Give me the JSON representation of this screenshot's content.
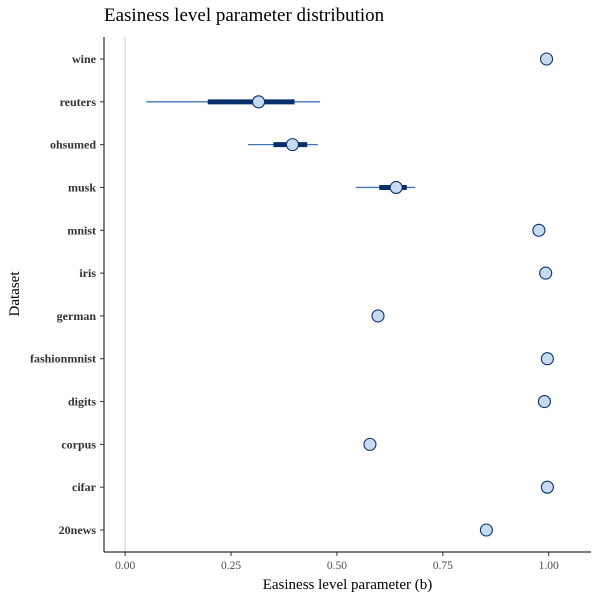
{
  "chart_data": {
    "type": "scatter",
    "title": "Easiness level parameter distribution",
    "xlabel": "Easiness level parameter (b)",
    "ylabel": "Dataset",
    "xlim": [
      -0.05,
      1.1
    ],
    "x_ticks": [
      0,
      0.25,
      0.5,
      0.75,
      1
    ],
    "x_tick_labels": [
      "0.00",
      "0.25",
      "0.50",
      "0.75",
      "1.00"
    ],
    "reference_line_x": 0,
    "colors": {
      "point_fill": "#c6dbef",
      "point_stroke": "#08306b",
      "thin_interval": "#4575b4",
      "thick_interval": "#08306b",
      "reference_line": "#d9d9d9"
    },
    "categories": [
      "wine",
      "reuters",
      "ohsumed",
      "musk",
      "mnist",
      "iris",
      "german",
      "fashionmnist",
      "digits",
      "corpus",
      "cifar",
      "20news"
    ],
    "points": [
      {
        "label": "wine",
        "estimate": 0.995
      },
      {
        "label": "reuters",
        "estimate": 0.315,
        "ci95": [
          0.05,
          0.46
        ],
        "ci66": [
          0.195,
          0.4
        ]
      },
      {
        "label": "ohsumed",
        "estimate": 0.395,
        "ci95": [
          0.29,
          0.455
        ],
        "ci66": [
          0.35,
          0.43
        ]
      },
      {
        "label": "musk",
        "estimate": 0.64,
        "ci95": [
          0.545,
          0.685
        ],
        "ci66": [
          0.6,
          0.665
        ]
      },
      {
        "label": "mnist",
        "estimate": 0.977
      },
      {
        "label": "iris",
        "estimate": 0.993
      },
      {
        "label": "german",
        "estimate": 0.597
      },
      {
        "label": "fashionmnist",
        "estimate": 0.997
      },
      {
        "label": "digits",
        "estimate": 0.99
      },
      {
        "label": "corpus",
        "estimate": 0.578
      },
      {
        "label": "cifar",
        "estimate": 0.997
      },
      {
        "label": "20news",
        "estimate": 0.853
      }
    ]
  }
}
